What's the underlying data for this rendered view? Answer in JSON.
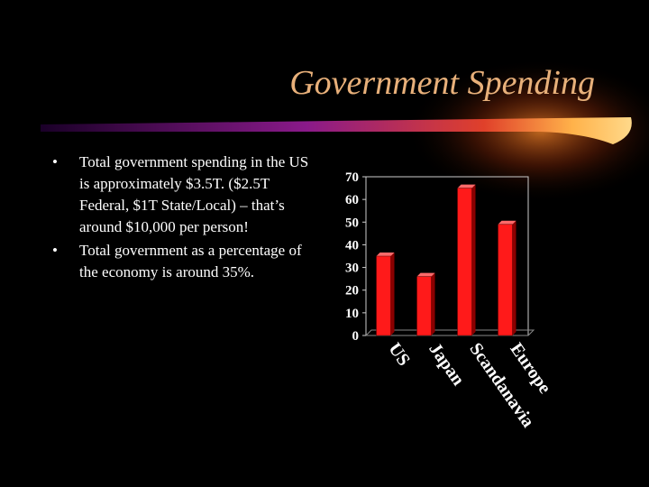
{
  "slide": {
    "title": "Government Spending",
    "bullets": [
      {
        "marker": "•",
        "text": "Total government spending in the US is approximately $3.5T. ($2.5T Federal, $1T State/Local) – that’s around $10,000 per person!"
      },
      {
        "marker": "•",
        "text": "Total government as a percentage of the economy is around 35%."
      }
    ]
  },
  "colors": {
    "title": "#e8b07a",
    "bar": "#ff1a1a",
    "bar_side": "#8a0000",
    "chart_text": "#ffffff"
  },
  "chart_data": {
    "type": "bar",
    "categories": [
      "US",
      "Japan",
      "Scandanavia",
      "Europe"
    ],
    "values": [
      35,
      26,
      65,
      49
    ],
    "ylim": [
      0,
      70
    ],
    "yticks": [
      0,
      10,
      20,
      30,
      40,
      50,
      60,
      70
    ],
    "grid": false,
    "legend": "none"
  }
}
